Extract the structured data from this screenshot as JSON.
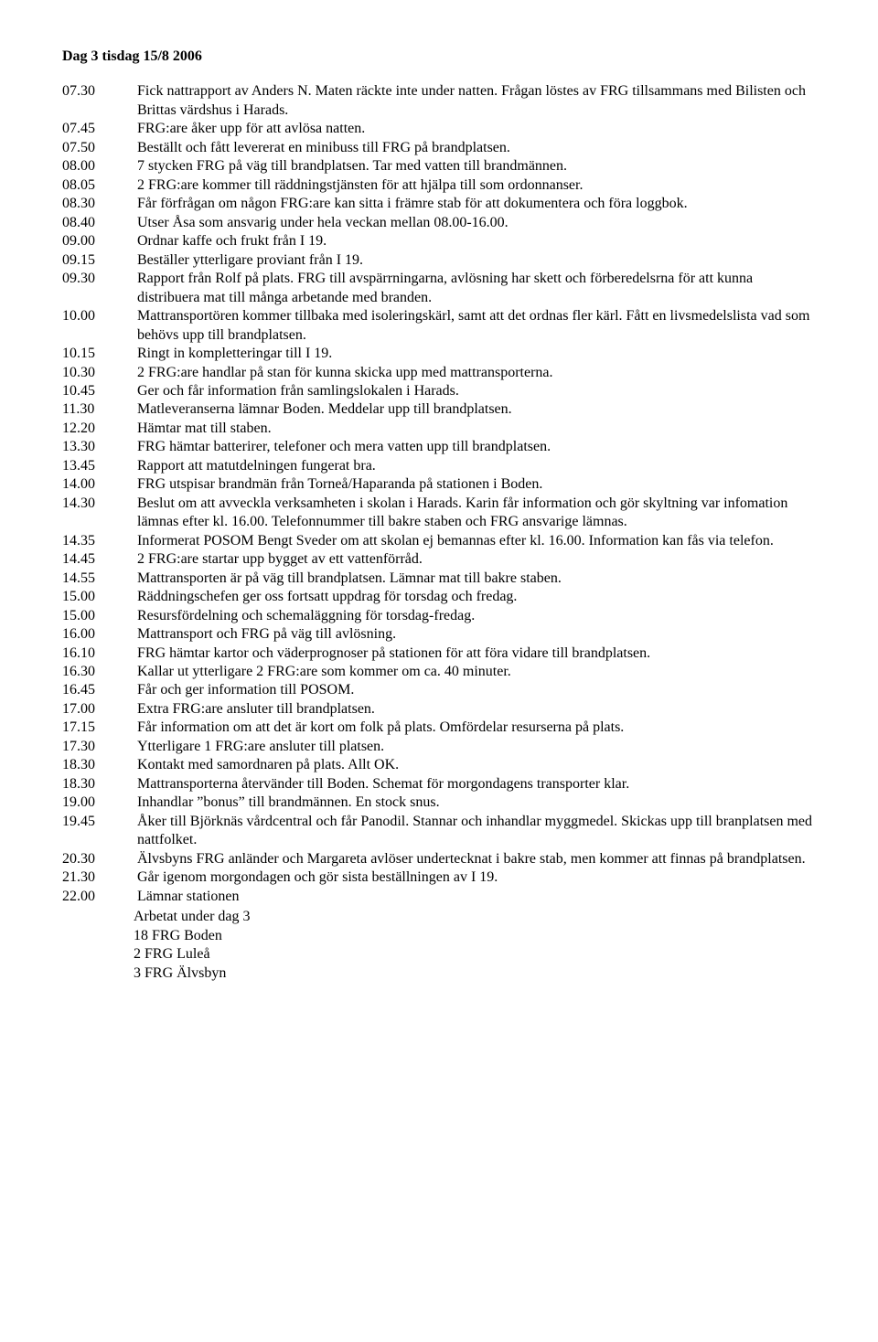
{
  "title": "Dag 3 tisdag 15/8 2006",
  "entries": [
    {
      "time": "07.30",
      "text": "Fick nattrapport av Anders N. Maten räckte inte under natten. Frågan löstes av FRG tillsammans med Bilisten och Brittas värdshus i Harads."
    },
    {
      "time": "07.45",
      "text": "FRG:are åker upp för att avlösa natten."
    },
    {
      "time": "07.50",
      "text": "Beställt och fått levererat en minibuss till FRG på brandplatsen."
    },
    {
      "time": "08.00",
      "text": "7 stycken FRG på väg till brandplatsen. Tar med vatten till brandmännen."
    },
    {
      "time": "08.05",
      "text": "2 FRG:are kommer till räddningstjänsten för att hjälpa till som ordonnanser."
    },
    {
      "time": "08.30",
      "text": "Får förfrågan om någon FRG:are kan sitta i främre stab för att dokumentera och föra loggbok."
    },
    {
      "time": "08.40",
      "text": "Utser Åsa som ansvarig under hela veckan mellan 08.00-16.00."
    },
    {
      "time": "09.00",
      "text": "Ordnar kaffe och frukt från I 19."
    },
    {
      "time": "09.15",
      "text": "Beställer ytterligare proviant från I 19."
    },
    {
      "time": "09.30",
      "text": "Rapport från Rolf på plats. FRG till avspärrningarna, avlösning har skett och förberedelsrna för att kunna distribuera mat till många arbetande med branden."
    },
    {
      "time": "10.00",
      "text": "Mattransportören kommer tillbaka med isoleringskärl, samt att det ordnas fler kärl. Fått en livsmedelslista vad som behövs upp till brandplatsen."
    },
    {
      "time": "10.15",
      "text": "Ringt in kompletteringar till I 19."
    },
    {
      "time": "10.30",
      "text": "2 FRG:are handlar på stan för kunna skicka upp med mattransporterna."
    },
    {
      "time": "10.45",
      "text": "Ger och får information från samlingslokalen i Harads."
    },
    {
      "time": "11.30",
      "text": "Matleveranserna lämnar Boden. Meddelar upp till brandplatsen."
    },
    {
      "time": "12.20",
      "text": "Hämtar mat till staben."
    },
    {
      "time": "13.30",
      "text": "FRG hämtar batterirer, telefoner och mera vatten upp till brandplatsen."
    },
    {
      "time": "13.45",
      "text": "Rapport att matutdelningen fungerat bra."
    },
    {
      "time": "14.00",
      "text": "FRG utspisar brandmän från Torneå/Haparanda på stationen i Boden."
    },
    {
      "time": "14.30",
      "text": "Beslut om att avveckla verksamheten i skolan i Harads. Karin får information och gör skyltning var infomation lämnas efter kl. 16.00. Telefonnummer till bakre staben och FRG ansvarige lämnas."
    },
    {
      "time": "14.35",
      "text": "Informerat POSOM Bengt Sveder om att skolan ej bemannas efter kl. 16.00. Information kan fås via telefon."
    },
    {
      "time": "14.45",
      "text": "2 FRG:are startar upp bygget av ett vattenförråd."
    },
    {
      "time": "14.55",
      "text": "Mattransporten är på väg till brandplatsen. Lämnar mat till bakre staben."
    },
    {
      "time": "15.00",
      "text": "Räddningschefen ger oss fortsatt uppdrag för torsdag och fredag."
    },
    {
      "time": "15.00",
      "text": "Resursfördelning och schemaläggning för torsdag-fredag."
    },
    {
      "time": "16.00",
      "text": "Mattransport och FRG på väg till avlösning."
    },
    {
      "time": "16.10",
      "text": "FRG hämtar kartor och väderprognoser på stationen för att föra vidare till brandplatsen."
    },
    {
      "time": "16.30",
      "text": "Kallar ut ytterligare 2 FRG:are som kommer om ca. 40 minuter."
    },
    {
      "time": "16.45",
      "text": "Får och ger information till POSOM."
    },
    {
      "time": "17.00",
      "text": "Extra FRG:are ansluter till brandplatsen."
    },
    {
      "time": "17.15",
      "text": "Får information om att det är kort om folk på plats. Omfördelar resurserna på plats."
    },
    {
      "time": "17.30",
      "text": "Ytterligare 1 FRG:are ansluter till platsen."
    },
    {
      "time": "18.30",
      "text": "Kontakt med samordnaren på plats. Allt OK."
    },
    {
      "time": "18.30",
      "text": "Mattransporterna återvänder till Boden. Schemat för morgondagens transporter klar."
    },
    {
      "time": "19.00",
      "text": "Inhandlar ”bonus” till brandmännen. En stock snus."
    },
    {
      "time": "19.45",
      "text": "Åker till Björknäs vårdcentral och får Panodil. Stannar och inhandlar myggmedel. Skickas upp till branplatsen med nattfolket."
    },
    {
      "time": "20.30",
      "text": "Älvsbyns FRG anländer och Margareta avlöser undertecknat i bakre stab, men kommer att finnas på brandplatsen."
    },
    {
      "time": "21.30",
      "text": "Går igenom morgondagen och gör sista beställningen av I 19."
    },
    {
      "time": "22.00",
      "text": "Lämnar stationen"
    }
  ],
  "footer": {
    "heading": "Arbetat under dag 3",
    "lines": [
      "18 FRG Boden",
      "2  FRG  Luleå",
      "3  FRG  Älvsbyn"
    ]
  }
}
